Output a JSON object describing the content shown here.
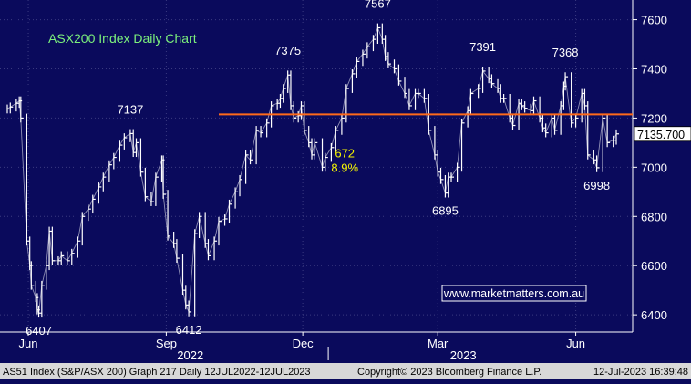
{
  "chart_data": {
    "type": "ohlc",
    "title": "ASX200 Index Daily Chart",
    "ylim": [
      6330,
      7680
    ],
    "y_ticks": [
      6400,
      6600,
      6800,
      7000,
      7200,
      7400,
      7600
    ],
    "x_range": [
      "2022-06-01",
      "2023-07-12"
    ],
    "x_month_ticks": [
      {
        "label": "Jun",
        "date": "2022-06-15"
      },
      {
        "label": "Sep",
        "date": "2022-09-15"
      },
      {
        "label": "Dec",
        "date": "2022-12-15"
      },
      {
        "label": "Mar",
        "date": "2023-03-15"
      },
      {
        "label": "Jun",
        "date": "2023-06-15"
      }
    ],
    "x_year_labels": [
      {
        "label": "2022",
        "date": "2022-10-01"
      },
      {
        "label": "2023",
        "date": "2023-04-01"
      }
    ],
    "year_divider_date": "2023-01-01",
    "horizontal_level": 7215,
    "last_price": "7135.700",
    "series": [
      {
        "values": [
          [
            "2022-06-01",
            7237
          ],
          [
            "2022-06-03",
            7245
          ],
          [
            "2022-06-07",
            7260
          ],
          [
            "2022-06-09",
            7270
          ],
          [
            "2022-06-10",
            7200
          ],
          [
            "2022-06-14",
            6700
          ],
          [
            "2022-06-16",
            6600
          ],
          [
            "2022-06-17",
            6520
          ],
          [
            "2022-06-20",
            6470
          ],
          [
            "2022-06-21",
            6420
          ],
          [
            "2022-06-22",
            6407
          ],
          [
            "2022-06-24",
            6520
          ],
          [
            "2022-06-27",
            6600
          ],
          [
            "2022-06-29",
            6740
          ],
          [
            "2022-07-01",
            6620
          ],
          [
            "2022-07-05",
            6620
          ],
          [
            "2022-07-07",
            6640
          ],
          [
            "2022-07-11",
            6620
          ],
          [
            "2022-07-14",
            6650
          ],
          [
            "2022-07-18",
            6700
          ],
          [
            "2022-07-21",
            6800
          ],
          [
            "2022-07-25",
            6830
          ],
          [
            "2022-07-28",
            6870
          ],
          [
            "2022-08-01",
            6920
          ],
          [
            "2022-08-04",
            6960
          ],
          [
            "2022-08-08",
            7010
          ],
          [
            "2022-08-11",
            7040
          ],
          [
            "2022-08-15",
            7090
          ],
          [
            "2022-08-18",
            7120
          ],
          [
            "2022-08-22",
            7137
          ],
          [
            "2022-08-24",
            7060
          ],
          [
            "2022-08-26",
            7100
          ],
          [
            "2022-08-29",
            6980
          ],
          [
            "2022-09-01",
            6880
          ],
          [
            "2022-09-05",
            6860
          ],
          [
            "2022-09-08",
            6960
          ],
          [
            "2022-09-12",
            7030
          ],
          [
            "2022-09-13",
            6890
          ],
          [
            "2022-09-16",
            6720
          ],
          [
            "2022-09-20",
            6690
          ],
          [
            "2022-09-22",
            6630
          ],
          [
            "2022-09-26",
            6500
          ],
          [
            "2022-09-28",
            6440
          ],
          [
            "2022-09-30",
            6412
          ],
          [
            "2022-10-04",
            6730
          ],
          [
            "2022-10-07",
            6800
          ],
          [
            "2022-10-11",
            6690
          ],
          [
            "2022-10-13",
            6640
          ],
          [
            "2022-10-17",
            6700
          ],
          [
            "2022-10-20",
            6780
          ],
          [
            "2022-10-24",
            6790
          ],
          [
            "2022-10-27",
            6850
          ],
          [
            "2022-10-31",
            6900
          ],
          [
            "2022-11-03",
            6950
          ],
          [
            "2022-11-07",
            7050
          ],
          [
            "2022-11-10",
            7030
          ],
          [
            "2022-11-14",
            7150
          ],
          [
            "2022-11-17",
            7140
          ],
          [
            "2022-11-21",
            7180
          ],
          [
            "2022-11-24",
            7250
          ],
          [
            "2022-11-28",
            7260
          ],
          [
            "2022-11-30",
            7280
          ],
          [
            "2022-12-02",
            7320
          ],
          [
            "2022-12-05",
            7375
          ],
          [
            "2022-12-07",
            7250
          ],
          [
            "2022-12-09",
            7200
          ],
          [
            "2022-12-12",
            7210
          ],
          [
            "2022-12-14",
            7250
          ],
          [
            "2022-12-16",
            7150
          ],
          [
            "2022-12-19",
            7100
          ],
          [
            "2022-12-21",
            7050
          ],
          [
            "2022-12-23",
            7100
          ],
          [
            "2022-12-28",
            7000
          ],
          [
            "2022-12-30",
            7040
          ],
          [
            "2023-01-03",
            7080
          ],
          [
            "2023-01-06",
            7150
          ],
          [
            "2023-01-10",
            7200
          ],
          [
            "2023-01-13",
            7320
          ],
          [
            "2023-01-17",
            7380
          ],
          [
            "2023-01-20",
            7430
          ],
          [
            "2023-01-24",
            7460
          ],
          [
            "2023-01-27",
            7490
          ],
          [
            "2023-01-31",
            7520
          ],
          [
            "2023-02-03",
            7567
          ],
          [
            "2023-02-06",
            7520
          ],
          [
            "2023-02-08",
            7450
          ],
          [
            "2023-02-10",
            7420
          ],
          [
            "2023-02-14",
            7400
          ],
          [
            "2023-02-17",
            7350
          ],
          [
            "2023-02-21",
            7300
          ],
          [
            "2023-02-24",
            7250
          ],
          [
            "2023-02-28",
            7300
          ],
          [
            "2023-03-02",
            7300
          ],
          [
            "2023-03-06",
            7280
          ],
          [
            "2023-03-09",
            7150
          ],
          [
            "2023-03-13",
            7050
          ],
          [
            "2023-03-15",
            6980
          ],
          [
            "2023-03-17",
            6950
          ],
          [
            "2023-03-20",
            6895
          ],
          [
            "2023-03-22",
            6960
          ],
          [
            "2023-03-24",
            6960
          ],
          [
            "2023-03-28",
            7000
          ],
          [
            "2023-03-31",
            7180
          ],
          [
            "2023-04-04",
            7230
          ],
          [
            "2023-04-06",
            7300
          ],
          [
            "2023-04-11",
            7320
          ],
          [
            "2023-04-14",
            7391
          ],
          [
            "2023-04-18",
            7360
          ],
          [
            "2023-04-20",
            7340
          ],
          [
            "2023-04-24",
            7320
          ],
          [
            "2023-04-26",
            7280
          ],
          [
            "2023-04-28",
            7280
          ],
          [
            "2023-05-02",
            7200
          ],
          [
            "2023-05-04",
            7170
          ],
          [
            "2023-05-08",
            7260
          ],
          [
            "2023-05-10",
            7250
          ],
          [
            "2023-05-12",
            7240
          ],
          [
            "2023-05-16",
            7230
          ],
          [
            "2023-05-18",
            7270
          ],
          [
            "2023-05-22",
            7200
          ],
          [
            "2023-05-24",
            7160
          ],
          [
            "2023-05-26",
            7140
          ],
          [
            "2023-05-30",
            7200
          ],
          [
            "2023-06-01",
            7150
          ],
          [
            "2023-06-05",
            7250
          ],
          [
            "2023-06-07",
            7330
          ],
          [
            "2023-06-08",
            7368
          ],
          [
            "2023-06-12",
            7180
          ],
          [
            "2023-06-15",
            7200
          ],
          [
            "2023-06-19",
            7300
          ],
          [
            "2023-06-21",
            7250
          ],
          [
            "2023-06-23",
            7050
          ],
          [
            "2023-06-27",
            7030
          ],
          [
            "2023-06-29",
            6998
          ],
          [
            "2023-07-03",
            7200
          ],
          [
            "2023-07-06",
            7100
          ],
          [
            "2023-07-10",
            7110
          ],
          [
            "2023-07-12",
            7135.7
          ]
        ]
      }
    ],
    "annotations": [
      {
        "text": "6407",
        "date": "2022-06-22",
        "price": 6407,
        "pos": "below"
      },
      {
        "text": "7137",
        "date": "2022-08-22",
        "price": 7137,
        "pos": "above"
      },
      {
        "text": "6412",
        "date": "2022-09-30",
        "price": 6412,
        "pos": "below"
      },
      {
        "text": "7375",
        "date": "2022-12-05",
        "price": 7375,
        "pos": "above"
      },
      {
        "text": "7567",
        "date": "2023-02-03",
        "price": 7567,
        "pos": "above"
      },
      {
        "text": "6895",
        "date": "2023-03-20",
        "price": 6895,
        "pos": "below"
      },
      {
        "text": "7391",
        "date": "2023-04-14",
        "price": 7391,
        "pos": "above"
      },
      {
        "text": "7368",
        "date": "2023-06-08",
        "price": 7368,
        "pos": "above"
      },
      {
        "text": "6998",
        "date": "2023-06-29",
        "price": 6998,
        "pos": "below"
      }
    ],
    "move_label": {
      "points": "672",
      "pct": "8.9%",
      "date": "2023-01-12",
      "price": 7040
    },
    "watermark": "www.marketmatters.com.au",
    "footer_left": "AS51 Index (S&P/ASX 200) Graph 217  Daily 12JUL2022-12JUL2023",
    "footer_center": "Copyright© 2023 Bloomberg Finance L.P.",
    "footer_right": "12-Jul-2023 16:39:48",
    "colors": {
      "background": "#0a0a5c",
      "price": "#ffffff",
      "level_line": "#ff6a1a",
      "title": "#7cf07c",
      "move_label": "#f4f400",
      "grid": "#3a3a80",
      "footer_bg": "#d8d8d8"
    }
  }
}
